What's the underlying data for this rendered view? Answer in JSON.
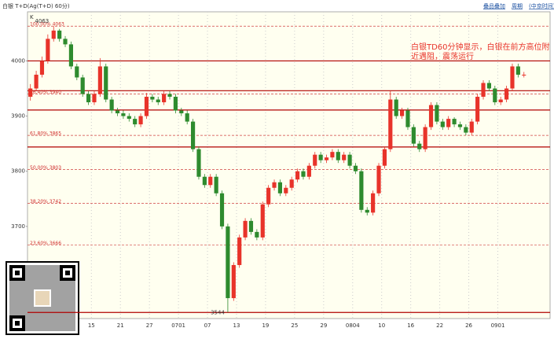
{
  "header": {
    "title": "白银 T+D(Ag(T+D) 60分)",
    "links": [
      "叠品叠加",
      "周期",
      "(中京时间)"
    ]
  },
  "chart_data": {
    "type": "candlestick",
    "axis_label": "K",
    "annotation": [
      "白银TD60分钟显示，白银在前方高位附",
      "近遇阻，震荡运行"
    ],
    "open": [
      3935,
      3950,
      3975,
      4000,
      4040,
      4055,
      4040,
      4030,
      3990,
      3970,
      3940,
      3925,
      3940,
      3990,
      3930,
      3910,
      3905,
      3900,
      3895,
      3885,
      3900,
      3935,
      3930,
      3925,
      3940,
      3935,
      3910,
      3905,
      3890,
      3840,
      3790,
      3775,
      3790,
      3760,
      3700,
      3570,
      3630,
      3680,
      3710,
      3690,
      3680,
      3740,
      3770,
      3780,
      3760,
      3770,
      3785,
      3800,
      3790,
      3810,
      3830,
      3820,
      3825,
      3835,
      3820,
      3830,
      3810,
      3800,
      3730,
      3725,
      3760,
      3810,
      3840,
      3930,
      3900,
      3910,
      3880,
      3850,
      3840,
      3880,
      3920,
      3890,
      3880,
      3895,
      3885,
      3880,
      3870,
      3890,
      3935,
      3960,
      3950,
      3925,
      3930,
      3950,
      3990,
      3975
    ],
    "high": [
      3958,
      3982,
      4008,
      4048,
      4063,
      4058,
      4045,
      4035,
      3995,
      3975,
      3945,
      3945,
      4005,
      3995,
      3935,
      3915,
      3910,
      3905,
      3900,
      3905,
      3942,
      3940,
      3935,
      3945,
      3945,
      3940,
      3915,
      3910,
      3895,
      3845,
      3795,
      3795,
      3795,
      3765,
      3705,
      3635,
      3685,
      3715,
      3715,
      3695,
      3745,
      3775,
      3785,
      3785,
      3775,
      3790,
      3805,
      3805,
      3815,
      3835,
      3835,
      3830,
      3840,
      3840,
      3835,
      3835,
      3815,
      3805,
      3735,
      3765,
      3815,
      3845,
      3945,
      3935,
      3915,
      3915,
      3885,
      3855,
      3885,
      3925,
      3925,
      3895,
      3900,
      3898,
      3890,
      3885,
      3895,
      3940,
      3965,
      3965,
      3955,
      3935,
      3955,
      3995,
      3995,
      3980
    ],
    "low": [
      3928,
      3945,
      3970,
      3995,
      4035,
      4035,
      4025,
      3985,
      3965,
      3935,
      3920,
      3920,
      3935,
      3925,
      3905,
      3900,
      3895,
      3890,
      3880,
      3880,
      3895,
      3925,
      3920,
      3920,
      3930,
      3905,
      3900,
      3885,
      3835,
      3785,
      3770,
      3770,
      3755,
      3695,
      3544,
      3565,
      3625,
      3675,
      3685,
      3675,
      3675,
      3735,
      3765,
      3755,
      3755,
      3765,
      3780,
      3785,
      3785,
      3805,
      3815,
      3815,
      3820,
      3815,
      3815,
      3805,
      3795,
      3725,
      3720,
      3720,
      3755,
      3805,
      3835,
      3895,
      3895,
      3875,
      3845,
      3835,
      3835,
      3875,
      3885,
      3875,
      3875,
      3880,
      3875,
      3865,
      3865,
      3885,
      3930,
      3945,
      3920,
      3920,
      3925,
      3945,
      3970,
      3970
    ],
    "close": [
      3950,
      3975,
      4000,
      4040,
      4055,
      4040,
      4030,
      3990,
      3970,
      3940,
      3925,
      3940,
      3990,
      3930,
      3910,
      3905,
      3900,
      3895,
      3885,
      3900,
      3935,
      3930,
      3925,
      3940,
      3935,
      3910,
      3905,
      3890,
      3840,
      3790,
      3775,
      3790,
      3760,
      3700,
      3570,
      3630,
      3680,
      3710,
      3690,
      3680,
      3740,
      3770,
      3780,
      3760,
      3770,
      3785,
      3800,
      3790,
      3810,
      3830,
      3820,
      3825,
      3835,
      3820,
      3830,
      3810,
      3800,
      3730,
      3725,
      3760,
      3810,
      3840,
      3930,
      3900,
      3910,
      3880,
      3850,
      3840,
      3880,
      3920,
      3890,
      3880,
      3895,
      3885,
      3880,
      3870,
      3890,
      3935,
      3960,
      3950,
      3925,
      3930,
      3950,
      3990,
      3975,
      3975
    ],
    "up_color": "#e8332a",
    "down_color": "#2e8b2e",
    "xlim": [
      0,
      90
    ],
    "xticks": [
      {
        "value": 11,
        "label": "15"
      },
      {
        "value": 16,
        "label": "21"
      },
      {
        "value": 21,
        "label": "27"
      },
      {
        "value": 26,
        "label": "0701"
      },
      {
        "value": 31,
        "label": "07"
      },
      {
        "value": 36,
        "label": "13"
      },
      {
        "value": 41,
        "label": "19"
      },
      {
        "value": 46,
        "label": "25"
      },
      {
        "value": 51,
        "label": "29"
      },
      {
        "value": 56,
        "label": "0804"
      },
      {
        "value": 61,
        "label": "10"
      },
      {
        "value": 66,
        "label": "16"
      },
      {
        "value": 71,
        "label": "22"
      },
      {
        "value": 76,
        "label": "26"
      },
      {
        "value": 81,
        "label": "0901"
      }
    ],
    "ylim": [
      3533,
      4089
    ],
    "yticks": [
      4000,
      3900,
      3800,
      3700
    ],
    "fib_levels": [
      {
        "value": 4063,
        "label": "100.00% 4063"
      },
      {
        "value": 3940,
        "label": "76.40% 3940"
      },
      {
        "value": 3865,
        "label": "61.80% 3865"
      },
      {
        "value": 3803,
        "label": "50.00% 3803"
      },
      {
        "value": 3742,
        "label": "38.20% 3742"
      },
      {
        "value": 3666,
        "label": "23.60% 3666"
      }
    ],
    "level_lines": [
      4000,
      3946,
      3911,
      3844,
      3544
    ],
    "high_mark": 4063,
    "low_mark": 3544
  }
}
